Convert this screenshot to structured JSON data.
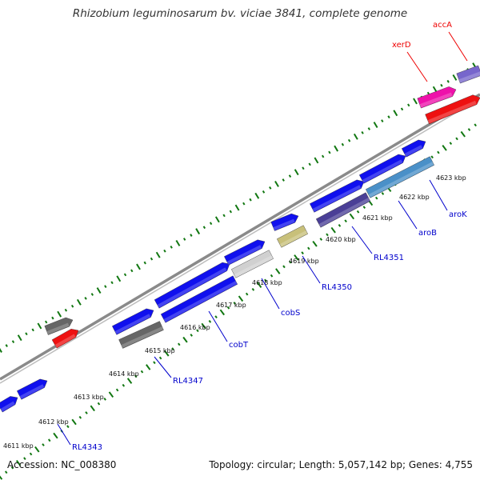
{
  "title": "Rhizobium leguminosarum bv. viciae 3841, complete genome",
  "footer": {
    "accession": "Accession: NC_008380",
    "summary": "Topology: circular; Length: 5,057,142 bp; Genes: 4,755"
  },
  "kbp_ticks": [
    "4611 kbp",
    "4612 kbp",
    "4613 kbp",
    "4614 kbp",
    "4615 kbp",
    "4616 kbp",
    "4617 kbp",
    "4618 kbp",
    "4619 kbp",
    "4620 kbp",
    "4621 kbp",
    "4622 kbp",
    "4623 kbp"
  ],
  "gene_labels": [
    {
      "text": "RL4343",
      "color": "#0000cc"
    },
    {
      "text": "RL4347",
      "color": "#0000cc"
    },
    {
      "text": "cobT",
      "color": "#0000cc"
    },
    {
      "text": "cobS",
      "color": "#0000cc"
    },
    {
      "text": "RL4350",
      "color": "#0000cc"
    },
    {
      "text": "RL4351",
      "color": "#0000cc"
    },
    {
      "text": "aroB",
      "color": "#0000cc"
    },
    {
      "text": "aroK",
      "color": "#0000cc"
    },
    {
      "text": "xerD",
      "color": "#ee0000"
    },
    {
      "text": "accA",
      "color": "#ee0000"
    }
  ],
  "colors": {
    "blue": "#1010ee",
    "red": "#ee1111",
    "magenta": "#ee11aa",
    "purple": "#7766cc",
    "dark_purple": "#4a3f96",
    "steel_blue": "#4a90c8",
    "khaki": "#c8c07a",
    "light_gray": "#d0d0d0",
    "dark_gray": "#666666",
    "backbone": "#8a8a8a",
    "tick_green": "#117711"
  }
}
